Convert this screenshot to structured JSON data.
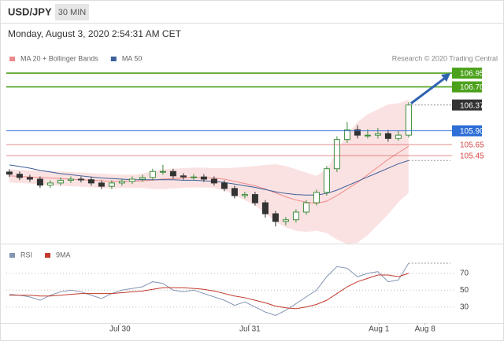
{
  "header": {
    "symbol": "USD/JPY",
    "timeframe": "30 MIN",
    "timestamp": "Monday, August 3, 2020 2:54:31 AM CET",
    "credit": "Research © 2020 Trading Central"
  },
  "chart_data": [
    {
      "type": "candlestick",
      "open": [
        105.15,
        105.11,
        105.05,
        105.02,
        104.91,
        104.95,
        105.0,
        105.02,
        105.01,
        104.95,
        104.89,
        104.95,
        104.98,
        105.02,
        105.05,
        105.16,
        105.16,
        105.08,
        105.06,
        105.06,
        105.02,
        104.95,
        104.85,
        104.72,
        104.74,
        104.59,
        104.39,
        104.25,
        104.28,
        104.42,
        104.59,
        104.78,
        105.21,
        105.74,
        105.92,
        105.82,
        105.82,
        105.85,
        105.76,
        105.82
      ],
      "high": [
        105.2,
        105.16,
        105.1,
        105.07,
        105.0,
        105.05,
        105.07,
        105.07,
        105.06,
        105.0,
        105.0,
        105.03,
        105.07,
        105.1,
        105.21,
        105.28,
        105.21,
        105.13,
        105.11,
        105.11,
        105.07,
        105.0,
        104.9,
        104.79,
        104.79,
        104.64,
        104.44,
        104.33,
        104.47,
        104.64,
        104.83,
        105.26,
        105.8,
        106.06,
        106.0,
        105.93,
        105.95,
        105.92,
        105.9,
        106.42
      ],
      "low": [
        105.06,
        105.0,
        104.97,
        104.86,
        104.86,
        104.9,
        104.95,
        104.96,
        104.9,
        104.84,
        104.84,
        104.9,
        104.93,
        104.97,
        105.0,
        105.1,
        105.03,
        105.01,
        105.01,
        104.97,
        104.9,
        104.8,
        104.67,
        104.67,
        104.54,
        104.32,
        104.16,
        104.18,
        104.23,
        104.37,
        104.54,
        104.72,
        105.15,
        105.68,
        105.76,
        105.76,
        105.76,
        105.7,
        105.72,
        105.78
      ],
      "close": [
        105.11,
        105.05,
        105.02,
        104.91,
        104.95,
        105.0,
        105.02,
        105.01,
        104.95,
        104.89,
        104.95,
        104.98,
        105.02,
        105.05,
        105.16,
        105.16,
        105.08,
        105.06,
        105.06,
        105.02,
        104.95,
        104.85,
        104.72,
        104.74,
        104.59,
        104.39,
        104.25,
        104.28,
        104.42,
        104.59,
        104.78,
        105.21,
        105.74,
        105.92,
        105.82,
        105.82,
        105.85,
        105.76,
        105.82,
        106.37
      ],
      "up_color": "#3d8c3d",
      "down_color": "#333333",
      "series": [
        {
          "name": "MA 20 + Bollinger Bands",
          "color": "#f08a8a",
          "values": [
            105.08,
            105.07,
            105.06,
            105.05,
            105.04,
            105.03,
            105.02,
            105.01,
            105.0,
            104.99,
            104.98,
            104.98,
            104.98,
            104.99,
            105.0,
            105.02,
            105.03,
            105.04,
            105.05,
            105.05,
            105.04,
            105.02,
            104.98,
            104.94,
            104.9,
            104.84,
            104.77,
            104.7,
            104.64,
            104.6,
            104.58,
            104.62,
            104.72,
            104.84,
            104.96,
            105.1,
            105.24,
            105.38,
            105.5,
            105.62
          ],
          "upper": [
            105.2,
            105.19,
            105.18,
            105.18,
            105.17,
            105.16,
            105.15,
            105.14,
            105.13,
            105.12,
            105.11,
            105.1,
            105.1,
            105.12,
            105.16,
            105.2,
            105.21,
            105.22,
            105.23,
            105.23,
            105.22,
            105.22,
            105.23,
            105.24,
            105.26,
            105.28,
            105.29,
            105.26,
            105.2,
            105.14,
            105.08,
            105.2,
            105.52,
            105.84,
            106.06,
            106.2,
            106.29,
            106.38,
            106.4,
            106.47
          ],
          "lower": [
            104.96,
            104.95,
            104.94,
            104.92,
            104.91,
            104.9,
            104.89,
            104.88,
            104.87,
            104.86,
            104.85,
            104.86,
            104.86,
            104.86,
            104.84,
            104.84,
            104.85,
            104.86,
            104.87,
            104.87,
            104.86,
            104.82,
            104.73,
            104.64,
            104.54,
            104.4,
            104.25,
            104.14,
            104.08,
            104.06,
            104.08,
            104.04,
            103.92,
            103.84,
            103.86,
            104.0,
            104.19,
            104.38,
            104.6,
            104.77
          ]
        },
        {
          "name": "MA 50",
          "color": "#3b5f98",
          "values": [
            105.28,
            105.25,
            105.22,
            105.18,
            105.15,
            105.12,
            105.1,
            105.08,
            105.06,
            105.04,
            105.03,
            105.02,
            105.01,
            105.01,
            105.01,
            105.01,
            105.01,
            105.0,
            105.0,
            104.99,
            104.98,
            104.96,
            104.93,
            104.9,
            104.87,
            104.83,
            104.79,
            104.76,
            104.74,
            104.73,
            104.73,
            104.76,
            104.82,
            104.9,
            104.98,
            105.06,
            105.14,
            105.22,
            105.3,
            105.36
          ]
        }
      ],
      "levels": [
        {
          "value": 106.95,
          "color": "#4ca11c",
          "style": "box"
        },
        {
          "value": 106.7,
          "label": "106.70",
          "color": "#4ca11c",
          "style": "box"
        },
        {
          "value": 106.37,
          "color": "#333333",
          "style": "current"
        },
        {
          "value": 105.9,
          "label": "105.90",
          "color": "#2f6fd6",
          "style": "box"
        },
        {
          "value": 105.65,
          "color": "#d64545",
          "style": "text"
        },
        {
          "value": 105.45,
          "color": "#d64545",
          "style": "text"
        }
      ],
      "arrow_color": "#2e62b0",
      "xlim": [
        -0.3,
        43.7
      ],
      "ylim": [
        103.89,
        107.08
      ]
    },
    {
      "type": "line",
      "series": [
        {
          "name": "RSI",
          "color": "#8495b3",
          "values": [
            45,
            44,
            42,
            38,
            44,
            48,
            50,
            48,
            44,
            40,
            46,
            50,
            52,
            54,
            60,
            58,
            50,
            48,
            50,
            46,
            42,
            38,
            32,
            36,
            30,
            24,
            20,
            26,
            34,
            42,
            50,
            66,
            78,
            76,
            66,
            70,
            72,
            60,
            62,
            82
          ]
        },
        {
          "name": "9MA",
          "color": "#c0392b",
          "values": [
            44,
            44,
            44,
            43,
            43,
            44,
            45,
            46,
            46,
            46,
            46,
            47,
            48,
            49,
            51,
            53,
            53,
            53,
            52,
            51,
            49,
            46,
            43,
            41,
            38,
            35,
            31,
            29,
            28,
            30,
            33,
            38,
            46,
            54,
            60,
            64,
            68,
            68,
            66,
            70
          ]
        }
      ],
      "xlim": [
        -0.3,
        43.7
      ],
      "ylim": [
        12,
        96
      ],
      "yticks": [
        30,
        50,
        70
      ],
      "grid": true,
      "xticks": [
        {
          "value": 10.8,
          "label": "Jul 30"
        },
        {
          "value": 23.5,
          "label": "Jul 31"
        },
        {
          "value": 36.1,
          "label": "Aug 1"
        },
        {
          "value": 40.6,
          "label": "Aug 8"
        }
      ]
    }
  ]
}
